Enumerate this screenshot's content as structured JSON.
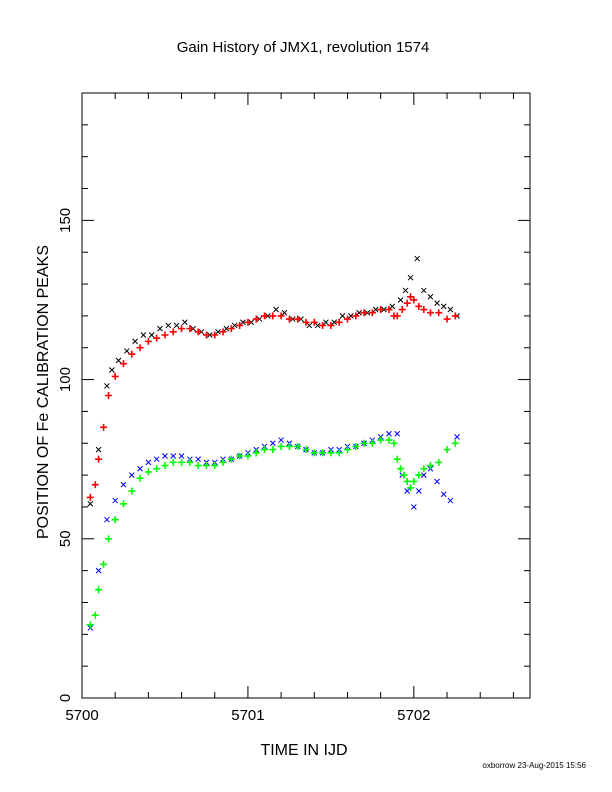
{
  "chart_data": {
    "type": "scatter",
    "title": "Gain History of JMX1, revolution 1574",
    "xlabel": "TIME IN IJD",
    "ylabel": "POSITION OF Fe CALIBRATION PEAKS",
    "xlim": [
      5700,
      5702.7
    ],
    "ylim": [
      0,
      190
    ],
    "x_ticks": [
      "5700",
      "5701",
      "5702"
    ],
    "x_tick_values": [
      5700,
      5701,
      5702
    ],
    "y_ticks": [
      "0",
      "50",
      "100",
      "150"
    ],
    "y_tick_values": [
      0,
      50,
      100,
      150
    ],
    "grid": false,
    "series": [
      {
        "color": "#000000",
        "marker": "x",
        "x": [
          5700.05,
          5700.1,
          5700.15,
          5700.18,
          5700.22,
          5700.27,
          5700.32,
          5700.37,
          5700.42,
          5700.47,
          5700.52,
          5700.57,
          5700.62,
          5700.67,
          5700.72,
          5700.77,
          5700.82,
          5700.87,
          5700.92,
          5700.97,
          5701.02,
          5701.07,
          5701.12,
          5701.17,
          5701.22,
          5701.27,
          5701.32,
          5701.37,
          5701.42,
          5701.47,
          5701.52,
          5701.57,
          5701.62,
          5701.67,
          5701.72,
          5701.77,
          5701.82,
          5701.87,
          5701.92,
          5701.95,
          5701.98,
          5702.02,
          5702.06,
          5702.1,
          5702.14,
          5702.18,
          5702.22,
          5702.26
        ],
        "y": [
          61,
          78,
          98,
          103,
          106,
          109,
          112,
          114,
          114,
          116,
          117,
          117,
          118,
          116,
          115,
          114,
          115,
          116,
          117,
          118,
          118,
          119,
          120,
          122,
          121,
          119,
          119,
          117,
          117,
          118,
          118,
          120,
          120,
          121,
          121,
          122,
          122,
          123,
          125,
          128,
          132,
          138,
          128,
          126,
          124,
          123,
          122,
          120
        ]
      },
      {
        "color": "#ff0000",
        "marker": "+",
        "x": [
          5700.05,
          5700.08,
          5700.1,
          5700.13,
          5700.16,
          5700.2,
          5700.25,
          5700.3,
          5700.35,
          5700.4,
          5700.45,
          5700.5,
          5700.55,
          5700.6,
          5700.65,
          5700.7,
          5700.75,
          5700.8,
          5700.85,
          5700.9,
          5700.95,
          5701.0,
          5701.05,
          5701.1,
          5701.15,
          5701.2,
          5701.25,
          5701.3,
          5701.35,
          5701.4,
          5701.45,
          5701.5,
          5701.55,
          5701.6,
          5701.65,
          5701.7,
          5701.75,
          5701.8,
          5701.85,
          5701.88,
          5701.9,
          5701.93,
          5701.96,
          5701.98,
          5702.0,
          5702.03,
          5702.06,
          5702.1,
          5702.15,
          5702.2,
          5702.25
        ],
        "y": [
          63,
          67,
          75,
          85,
          95,
          101,
          105,
          108,
          110,
          112,
          113,
          114,
          115,
          116,
          116,
          115,
          114,
          114,
          115,
          116,
          117,
          118,
          119,
          120,
          120,
          120,
          119,
          119,
          118,
          118,
          117,
          117,
          118,
          119,
          120,
          121,
          121,
          122,
          122,
          120,
          120,
          122,
          124,
          126,
          125,
          123,
          122,
          121,
          121,
          119,
          120
        ]
      },
      {
        "color": "#0000ff",
        "marker": "x",
        "x": [
          5700.05,
          5700.1,
          5700.15,
          5700.2,
          5700.25,
          5700.3,
          5700.35,
          5700.4,
          5700.45,
          5700.5,
          5700.55,
          5700.6,
          5700.65,
          5700.7,
          5700.75,
          5700.8,
          5700.85,
          5700.9,
          5700.95,
          5701.0,
          5701.05,
          5701.1,
          5701.15,
          5701.2,
          5701.25,
          5701.3,
          5701.35,
          5701.4,
          5701.45,
          5701.5,
          5701.55,
          5701.6,
          5701.65,
          5701.7,
          5701.75,
          5701.8,
          5701.85,
          5701.9,
          5701.93,
          5701.96,
          5702.0,
          5702.03,
          5702.06,
          5702.1,
          5702.14,
          5702.18,
          5702.22,
          5702.26
        ],
        "y": [
          22,
          40,
          56,
          62,
          67,
          70,
          72,
          74,
          75,
          76,
          76,
          76,
          75,
          75,
          74,
          74,
          75,
          75,
          76,
          77,
          78,
          79,
          80,
          81,
          80,
          79,
          78,
          77,
          77,
          78,
          78,
          79,
          79,
          80,
          81,
          82,
          83,
          83,
          70,
          65,
          60,
          65,
          70,
          72,
          68,
          64,
          62,
          82
        ]
      },
      {
        "color": "#00ff00",
        "marker": "+",
        "x": [
          5700.05,
          5700.08,
          5700.1,
          5700.13,
          5700.16,
          5700.2,
          5700.25,
          5700.3,
          5700.35,
          5700.4,
          5700.45,
          5700.5,
          5700.55,
          5700.6,
          5700.65,
          5700.7,
          5700.75,
          5700.8,
          5700.85,
          5700.9,
          5700.95,
          5701.0,
          5701.05,
          5701.1,
          5701.15,
          5701.2,
          5701.25,
          5701.3,
          5701.35,
          5701.4,
          5701.45,
          5701.5,
          5701.55,
          5701.6,
          5701.65,
          5701.7,
          5701.75,
          5701.8,
          5701.85,
          5701.88,
          5701.9,
          5701.92,
          5701.94,
          5701.96,
          5701.98,
          5702.0,
          5702.03,
          5702.06,
          5702.1,
          5702.15,
          5702.2,
          5702.25
        ],
        "y": [
          23,
          26,
          34,
          42,
          50,
          56,
          61,
          65,
          69,
          71,
          72,
          73,
          74,
          74,
          74,
          73,
          73,
          73,
          74,
          75,
          76,
          76,
          77,
          78,
          78,
          79,
          79,
          79,
          78,
          77,
          77,
          77,
          77,
          78,
          79,
          80,
          80,
          81,
          81,
          80,
          75,
          72,
          70,
          68,
          66,
          68,
          70,
          72,
          73,
          74,
          78,
          80
        ]
      }
    ]
  },
  "footer": "oxborrow 23-Aug-2015 15:56"
}
